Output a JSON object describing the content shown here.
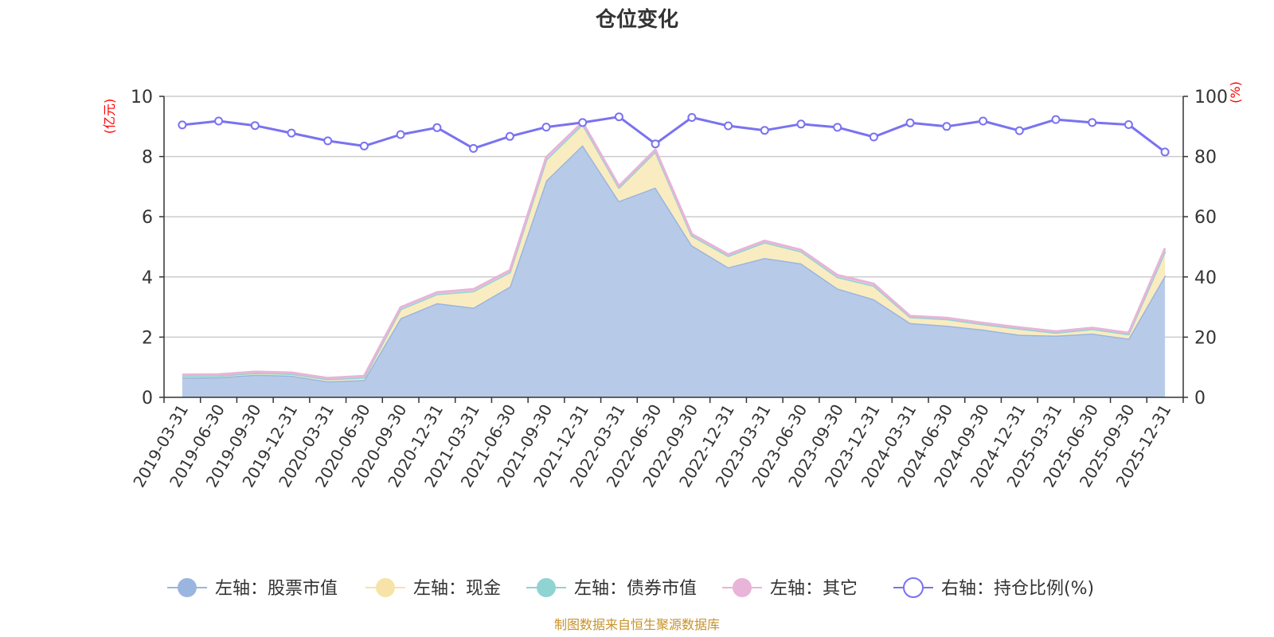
{
  "chart_data": {
    "type": "area",
    "title": "仓位变化",
    "left_axis_unit": "(亿元)",
    "right_axis_unit": "(%)",
    "left_ylim": [
      0,
      10
    ],
    "left_ticks": [
      "0",
      "2",
      "4",
      "6",
      "8",
      "10"
    ],
    "right_ylim": [
      0,
      100
    ],
    "right_ticks": [
      "0",
      "20",
      "40",
      "60",
      "80",
      "100"
    ],
    "categories": [
      "2019-03-31",
      "2019-06-30",
      "2019-09-30",
      "2019-12-31",
      "2020-03-31",
      "2020-06-30",
      "2020-09-30",
      "2020-12-31",
      "2021-03-31",
      "2021-06-30",
      "2021-09-30",
      "2021-12-31",
      "2022-03-31",
      "2022-06-30",
      "2022-09-30",
      "2022-12-31",
      "2023-03-31",
      "2023-06-30",
      "2023-09-30",
      "2023-12-31",
      "2024-03-31",
      "2024-06-30",
      "2024-09-30",
      "2024-12-31",
      "2025-03-31",
      "2025-06-30",
      "2025-09-30",
      "2025-12-31"
    ],
    "series": [
      {
        "name": "左轴：股票市值",
        "axis": "left",
        "color": "#9ab5e0",
        "fill": "#b7cbe9",
        "values": [
          0.65,
          0.67,
          0.75,
          0.72,
          0.53,
          0.58,
          2.63,
          3.13,
          2.98,
          3.68,
          7.2,
          8.38,
          6.52,
          6.97,
          5.05,
          4.32,
          4.63,
          4.45,
          3.62,
          3.26,
          2.47,
          2.38,
          2.25,
          2.08,
          2.05,
          2.12,
          1.95,
          4.05
        ]
      },
      {
        "name": "左轴：现金",
        "axis": "left",
        "color": "#f7e3a8",
        "fill": "#f9ecc0",
        "values": [
          0.06,
          0.05,
          0.06,
          0.06,
          0.07,
          0.08,
          0.3,
          0.3,
          0.55,
          0.48,
          0.7,
          0.7,
          0.45,
          1.2,
          0.32,
          0.38,
          0.52,
          0.4,
          0.38,
          0.45,
          0.2,
          0.22,
          0.18,
          0.2,
          0.1,
          0.15,
          0.15,
          0.8
        ]
      },
      {
        "name": "左轴：债券市值",
        "axis": "left",
        "color": "#8fd4d3",
        "fill": "#a6dedd",
        "values": [
          0,
          0,
          0,
          0,
          0,
          0,
          0,
          0,
          0,
          0,
          0,
          0,
          0,
          0,
          0,
          0,
          0,
          0,
          0,
          0,
          0,
          0,
          0,
          0,
          0,
          0,
          0,
          0
        ]
      },
      {
        "name": "左轴：其它",
        "axis": "left",
        "color": "#e8b4d8",
        "fill": "#f0cfe5",
        "values": [
          0.04,
          0.04,
          0.04,
          0.04,
          0.04,
          0.05,
          0.06,
          0.06,
          0.06,
          0.06,
          0.08,
          0.06,
          0.05,
          0.06,
          0.05,
          0.05,
          0.05,
          0.05,
          0.06,
          0.06,
          0.03,
          0.04,
          0.04,
          0.04,
          0.04,
          0.04,
          0.04,
          0.1
        ]
      },
      {
        "name": "右轴：持仓比例(%)",
        "axis": "right",
        "color": "#7a72f0",
        "values": [
          90.5,
          91.8,
          90.3,
          87.8,
          85.2,
          83.5,
          87.3,
          89.6,
          82.7,
          86.7,
          89.8,
          91.3,
          93.2,
          84.2,
          93.0,
          90.2,
          88.7,
          90.8,
          89.7,
          86.5,
          91.2,
          90.0,
          91.8,
          88.6,
          92.3,
          91.3,
          90.6,
          81.5
        ]
      }
    ]
  },
  "source_note": "制图数据来自恒生聚源数据库"
}
